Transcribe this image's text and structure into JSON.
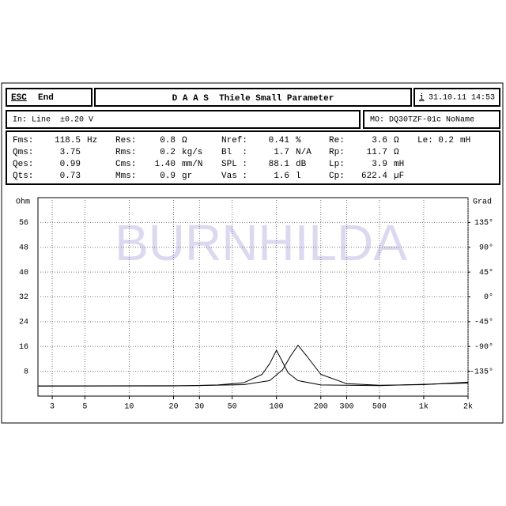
{
  "toolbar": {
    "esc": "ESC",
    "end": "End",
    "title": "D A A S  Thiele Small Parameter",
    "date_key": "i",
    "date": "31.10.11 14:53"
  },
  "status": {
    "input": "In: Line  ±0.20 V",
    "model": "MO: DQ30TZF-01c NoName"
  },
  "parameters": [
    [
      {
        "label": "Fms:",
        "value": "118.5",
        "unit": "Hz"
      },
      {
        "label": "Res:",
        "value": "0.8",
        "unit": "Ω"
      },
      {
        "label": "Nref:",
        "value": "0.41",
        "unit": "%"
      },
      {
        "label": "Re:",
        "value": "3.6",
        "unit": "Ω"
      },
      {
        "label": "Le:",
        "value": "0.2",
        "unit": "mH"
      }
    ],
    [
      {
        "label": "Qms:",
        "value": "3.75",
        "unit": ""
      },
      {
        "label": "Rms:",
        "value": "0.2",
        "unit": "kg/s"
      },
      {
        "label": "Bl  :",
        "value": "1.7",
        "unit": "N/A"
      },
      {
        "label": "Rp:",
        "value": "11.7",
        "unit": "Ω"
      }
    ],
    [
      {
        "label": "Qes:",
        "value": "0.99",
        "unit": ""
      },
      {
        "label": "Cms:",
        "value": "1.40",
        "unit": "mm/N"
      },
      {
        "label": "SPL :",
        "value": "88.1",
        "unit": "dB"
      },
      {
        "label": "Lp:",
        "value": "3.9",
        "unit": "mH"
      }
    ],
    [
      {
        "label": "Qts:",
        "value": "0.73",
        "unit": ""
      },
      {
        "label": "Mms:",
        "value": "0.9",
        "unit": "gr"
      },
      {
        "label": "Vas :",
        "value": "1.6",
        "unit": "l"
      },
      {
        "label": "Cp:",
        "value": "622.4",
        "unit": "µF"
      }
    ]
  ],
  "chart_data": {
    "type": "line",
    "watermark": "BURNHILDA",
    "y_label": "Ohm",
    "y2_label": "Grad",
    "log_x": true,
    "grid": true,
    "xlim": [
      2.4,
      2000
    ],
    "xticks": [
      3,
      5,
      10,
      20,
      30,
      50,
      100,
      200,
      300,
      500,
      {
        "value": 1000,
        "label": "1k"
      },
      {
        "value": 2000,
        "label": "2k"
      }
    ],
    "ylim": [
      0,
      64
    ],
    "yticks": [
      8,
      16,
      24,
      32,
      40,
      48,
      56
    ],
    "y2lim": [
      -180,
      180
    ],
    "y2ticks": [
      {
        "value": -135,
        "label": "-135°"
      },
      {
        "value": -90,
        "label": "-90°"
      },
      {
        "value": -45,
        "label": "-45°"
      },
      {
        "value": 0,
        "label": "0°"
      },
      {
        "value": 45,
        "label": "45°"
      },
      {
        "value": 90,
        "label": "90°"
      },
      {
        "value": 135,
        "label": "135°"
      }
    ],
    "series": [
      {
        "color": "#000000",
        "x": [
          2.4,
          20,
          40,
          60,
          80,
          90,
          100,
          110,
          120,
          140,
          200,
          500,
          2000
        ],
        "values": [
          3.2,
          3.3,
          3.6,
          4.3,
          7,
          10.5,
          14.8,
          11,
          7.5,
          5,
          3.6,
          3.4,
          4.2
        ]
      },
      {
        "color": "#000000",
        "x": [
          2.4,
          30,
          60,
          90,
          110,
          125,
          140,
          160,
          200,
          300,
          500,
          1000,
          2000
        ],
        "values": [
          3.3,
          3.4,
          3.7,
          5,
          8.5,
          13,
          16.4,
          13,
          7,
          4,
          3.5,
          3.7,
          4.5
        ]
      }
    ]
  }
}
